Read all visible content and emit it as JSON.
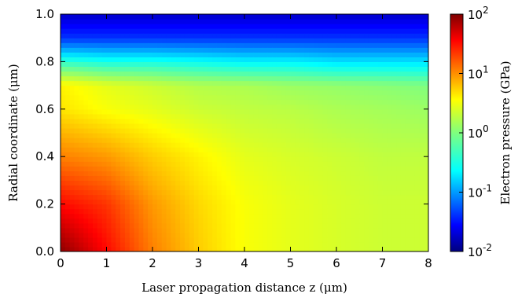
{
  "chart_data": {
    "type": "heatmap",
    "title": "",
    "xlabel": "Laser propagation distance z (μm)",
    "ylabel": "Radial coordinate (μm)",
    "xlim": [
      0,
      8
    ],
    "ylim": [
      0,
      1.0
    ],
    "x_ticks": [
      "0",
      "1",
      "2",
      "3",
      "4",
      "5",
      "6",
      "7",
      "8"
    ],
    "y_ticks": [
      "0.0",
      "0.2",
      "0.4",
      "0.6",
      "0.8",
      "1.0"
    ],
    "colorbar": {
      "label": "Electron pressure (GPa)",
      "scale": "log",
      "range": [
        0.01,
        100
      ],
      "ticks": [
        {
          "value": 100,
          "base": "10",
          "exp": "2"
        },
        {
          "value": 10,
          "base": "10",
          "exp": "1"
        },
        {
          "value": 1,
          "base": "10",
          "exp": "0"
        },
        {
          "value": 0.1,
          "base": "10",
          "exp": "-1"
        },
        {
          "value": 0.01,
          "base": "10",
          "exp": "-2"
        }
      ],
      "colormap": "jet"
    },
    "grid": false,
    "estimated_field_GPa": {
      "z": [
        0,
        1,
        2,
        3,
        4,
        5,
        6,
        7,
        8
      ],
      "r": [
        0.0,
        0.2,
        0.4,
        0.6,
        0.7,
        0.8,
        0.9,
        1.0
      ],
      "values": [
        [
          90,
          30,
          10,
          4,
          3.5,
          0.5,
          0.05,
          0.02
        ],
        [
          30,
          20,
          8,
          3,
          2.5,
          0.4,
          0.05,
          0.02
        ],
        [
          10,
          8,
          5,
          2.5,
          2,
          0.4,
          0.05,
          0.02
        ],
        [
          5,
          4.5,
          3.5,
          2,
          1.6,
          0.35,
          0.05,
          0.02
        ],
        [
          3,
          3,
          2.5,
          1.8,
          1.5,
          0.3,
          0.05,
          0.02
        ],
        [
          2.5,
          2.5,
          2.2,
          1.7,
          1.3,
          0.3,
          0.05,
          0.02
        ],
        [
          2.2,
          2.2,
          2,
          1.5,
          1.2,
          0.25,
          0.05,
          0.02
        ],
        [
          2,
          2,
          1.8,
          1.4,
          1.1,
          0.25,
          0.05,
          0.02
        ],
        [
          2,
          2,
          1.8,
          1.3,
          1.0,
          0.25,
          0.05,
          0.02
        ]
      ]
    }
  }
}
